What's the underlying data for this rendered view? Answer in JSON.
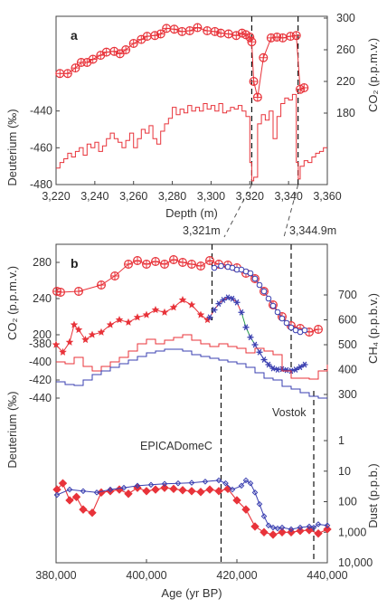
{
  "colors": {
    "red": "#e8333a",
    "blue": "#3a3fb0",
    "green": "#2aa04a",
    "axis": "#444444"
  },
  "chart_data": [
    {
      "panel": "a",
      "type": "line",
      "xlabel": "Depth (m)",
      "xlim": [
        3220,
        3360
      ],
      "xticks": [
        "3,220",
        "3,240",
        "3,260",
        "3,280",
        "3,300",
        "3,320",
        "3,340",
        "3,360"
      ],
      "left_axis": {
        "label": "Deuterium (‰)",
        "ylim": [
          -480,
          -420
        ],
        "ticks": [
          "-440",
          "-460",
          "-480"
        ]
      },
      "right_axis": {
        "label": "CO₂ (p.p.m.v.)",
        "ylim": [
          140,
          300
        ],
        "ticks": [
          "300",
          "260",
          "220",
          "180"
        ]
      },
      "dashed_lines_x": [
        3321,
        3344.9
      ],
      "series": [
        {
          "axis": "right",
          "style": "circle-plus",
          "x": [
            3222,
            3226,
            3230,
            3233,
            3236,
            3239,
            3243,
            3246,
            3250,
            3253,
            3256,
            3260,
            3264,
            3267,
            3271,
            3274,
            3277,
            3281,
            3285,
            3289,
            3293,
            3298,
            3302,
            3305,
            3309,
            3313,
            3316,
            3318,
            3320,
            3321,
            3322,
            3324,
            3327,
            3331,
            3334,
            3337,
            3341,
            3344,
            3346,
            3348
          ],
          "y": [
            230,
            230,
            237,
            244,
            244,
            248,
            253,
            257,
            258,
            255,
            260,
            268,
            273,
            277,
            278,
            280,
            287,
            286,
            283,
            284,
            288,
            284,
            283,
            281,
            280,
            278,
            281,
            279,
            276,
            270,
            220,
            200,
            250,
            275,
            276,
            275,
            277,
            278,
            210,
            212
          ]
        },
        {
          "axis": "left",
          "style": "step",
          "x": [
            3220,
            3222,
            3224,
            3226,
            3228,
            3230,
            3232,
            3234,
            3236,
            3238,
            3240,
            3242,
            3244,
            3246,
            3248,
            3250,
            3252,
            3254,
            3256,
            3258,
            3260,
            3262,
            3264,
            3266,
            3268,
            3270,
            3272,
            3274,
            3276,
            3278,
            3280,
            3282,
            3284,
            3286,
            3288,
            3290,
            3292,
            3294,
            3296,
            3298,
            3300,
            3302,
            3304,
            3306,
            3308,
            3310,
            3312,
            3314,
            3316,
            3318,
            3320,
            3321,
            3322,
            3324,
            3326,
            3328,
            3330,
            3332,
            3334,
            3336,
            3338,
            3340,
            3342,
            3344,
            3345,
            3346,
            3348,
            3350,
            3352,
            3354,
            3356,
            3358,
            3360
          ],
          "y": [
            -471,
            -468,
            -466,
            -463,
            -465,
            -462,
            -460,
            -464,
            -458,
            -460,
            -457,
            -462,
            -459,
            -455,
            -452,
            -455,
            -457,
            -460,
            -456,
            -452,
            -460,
            -455,
            -450,
            -452,
            -448,
            -455,
            -458,
            -451,
            -447,
            -444,
            -438,
            -442,
            -439,
            -441,
            -437,
            -440,
            -438,
            -440,
            -436,
            -439,
            -437,
            -440,
            -436,
            -441,
            -440,
            -438,
            -439,
            -437,
            -440,
            -443,
            -468,
            -478,
            -476,
            -447,
            -442,
            -445,
            -440,
            -455,
            -443,
            -436,
            -433,
            -434,
            -431,
            -468,
            -477,
            -470,
            -467,
            -468,
            -465,
            -463,
            -462,
            -460,
            -460
          ]
        }
      ]
    },
    {
      "panel": "b",
      "type": "line",
      "xlabel": "Age (yr BP)",
      "xlim": [
        380000,
        440000
      ],
      "xticks": [
        "380,000",
        "400,000",
        "420,000",
        "440,000"
      ],
      "annotations": [
        "3,321m",
        "3,344.9m",
        "Vostok",
        "EPICADomeC"
      ],
      "dashed_lines_x": [
        414500,
        432000,
        416500,
        437000
      ],
      "axes": {
        "co2": {
          "label": "CO₂ (p.p.m.v.)",
          "ylim": [
            180,
            300
          ],
          "ticks": [
            "280",
            "240",
            "200"
          ]
        },
        "ch4": {
          "label": "CH₄ (p.p.b.v.)",
          "ylim": [
            300,
            780
          ],
          "ticks": [
            "700",
            "600",
            "500",
            "400",
            "300"
          ]
        },
        "deuterium": {
          "label": "Deuterium (‰)",
          "ylim": [
            -455,
            -360
          ],
          "ticks": [
            "-380",
            "-400",
            "-420",
            "-440"
          ]
        },
        "dust": {
          "label": "Dust (p.p.b.)",
          "scale": "log",
          "ylim": [
            0.3,
            10000
          ],
          "ticks": [
            "1",
            "10",
            "100",
            "1,000",
            "10,000"
          ]
        }
      },
      "series": [
        {
          "name": "Vostok",
          "axis": "co2",
          "style": "circle-plus",
          "x": [
            380200,
            381000,
            385000,
            390000,
            393000,
            396000,
            398000,
            400000,
            402000,
            404000,
            406000,
            408000,
            410000,
            412000,
            414000,
            416000,
            418000,
            420000,
            422000,
            424000,
            426000,
            428000,
            430000,
            432000,
            434000,
            436000,
            438000
          ],
          "y": [
            248,
            247,
            248,
            255,
            265,
            278,
            282,
            278,
            281,
            278,
            283,
            280,
            278,
            276,
            282,
            278,
            277,
            274,
            268,
            262,
            248,
            233,
            220,
            210,
            207,
            203,
            206
          ]
        },
        {
          "axis": "co2",
          "style": "circle",
          "x": [
            415000,
            416500,
            418000,
            419000,
            420000,
            421000,
            422000,
            423000,
            424000,
            425000,
            426000,
            427000,
            428000,
            429000,
            430000,
            431000,
            432000,
            433000,
            434000,
            435000
          ],
          "y": [
            274,
            276,
            275,
            274,
            272,
            272,
            270,
            268,
            262,
            255,
            248,
            240,
            232,
            225,
            218,
            213,
            208,
            205,
            203,
            205
          ]
        },
        {
          "axis": "ch4",
          "style": "star",
          "x": [
            380000,
            381500,
            383000,
            384000,
            385000,
            386500,
            388000,
            390000,
            392000,
            394000,
            396000,
            398000,
            400000,
            402000,
            404000,
            406000,
            408000,
            410000,
            412000,
            413500
          ],
          "y": [
            500,
            470,
            510,
            580,
            560,
            520,
            540,
            550,
            580,
            600,
            590,
            610,
            620,
            640,
            630,
            650,
            680,
            660,
            620,
            600
          ]
        },
        {
          "axis": "ch4",
          "style": "asterisk",
          "x": [
            414000,
            415000,
            416000,
            417000,
            418000,
            419000,
            420000,
            421000,
            422000,
            423000,
            424000,
            425000,
            426000,
            427000,
            428000,
            429000,
            430000,
            431000,
            432000,
            433000,
            434000,
            435000
          ],
          "y": [
            610,
            640,
            665,
            680,
            690,
            685,
            670,
            630,
            570,
            530,
            500,
            470,
            440,
            420,
            405,
            400,
            402,
            398,
            395,
            400,
            410,
            420
          ]
        },
        {
          "name": "Vostok",
          "axis": "deuterium",
          "style": "step",
          "x": [
            380000,
            382000,
            384000,
            386000,
            388000,
            390000,
            392000,
            394000,
            396000,
            398000,
            400000,
            402000,
            404000,
            406000,
            408000,
            410000,
            412000,
            414000,
            416000,
            418000,
            420000,
            422000,
            424000,
            426000,
            428000,
            430000,
            432000,
            434000,
            436000,
            438000,
            440000
          ],
          "y": [
            -400,
            -402,
            -395,
            -405,
            -410,
            -405,
            -400,
            -395,
            -388,
            -380,
            -375,
            -380,
            -376,
            -373,
            -370,
            -376,
            -380,
            -383,
            -380,
            -383,
            -385,
            -390,
            -385,
            -388,
            -392,
            -410,
            -418,
            -418,
            -419,
            -410,
            -403
          ]
        },
        {
          "name": "EPICADomeC",
          "axis": "deuterium",
          "style": "step",
          "x": [
            380000,
            382000,
            384000,
            386000,
            388000,
            390000,
            392000,
            394000,
            396000,
            398000,
            400000,
            402000,
            404000,
            406000,
            408000,
            410000,
            412000,
            414000,
            416000,
            418000,
            420000,
            422000,
            424000,
            426000,
            428000,
            430000,
            432000,
            434000,
            436000,
            438000,
            440000
          ],
          "y": [
            -422,
            -425,
            -426,
            -420,
            -414,
            -410,
            -406,
            -402,
            -398,
            -394,
            -390,
            -388,
            -386,
            -386,
            -388,
            -392,
            -394,
            -396,
            -398,
            -400,
            -402,
            -406,
            -412,
            -418,
            -420,
            -427,
            -430,
            -434,
            -438,
            -440,
            -440
          ]
        },
        {
          "name": "Vostok",
          "axis": "dust",
          "style": "diamond",
          "x": [
            380200,
            381500,
            383000,
            384500,
            386000,
            388000,
            390000,
            392000,
            394000,
            396000,
            398000,
            400000,
            402000,
            404000,
            406000,
            408000,
            410000,
            412000,
            414000,
            416000,
            418000,
            420000,
            422000,
            424000,
            426000,
            428000,
            430000,
            432000,
            434000,
            436000,
            438000,
            440000
          ],
          "y": [
            40,
            25,
            90,
            70,
            180,
            230,
            50,
            45,
            40,
            55,
            35,
            45,
            40,
            35,
            38,
            42,
            45,
            48,
            40,
            45,
            38,
            90,
            180,
            650,
            1000,
            1200,
            1000,
            1000,
            900,
            850,
            1100,
            800
          ]
        },
        {
          "name": "EPICADomeC",
          "axis": "dust",
          "style": "diamond",
          "x": [
            380200,
            383000,
            386000,
            389000,
            392000,
            395000,
            398000,
            401000,
            404000,
            407000,
            410000,
            413000,
            416000,
            417500,
            419000,
            421000,
            422000,
            423000,
            424000,
            425000,
            426000,
            427000,
            428000,
            429000,
            430000,
            432000,
            434000,
            436000,
            437000,
            438000,
            440000
          ],
          "y": [
            60,
            40,
            45,
            50,
            40,
            35,
            30,
            28,
            26,
            25,
            24,
            22,
            20,
            25,
            40,
            30,
            20,
            25,
            50,
            120,
            300,
            600,
            700,
            750,
            700,
            800,
            700,
            650,
            700,
            550,
            600
          ]
        }
      ]
    }
  ]
}
